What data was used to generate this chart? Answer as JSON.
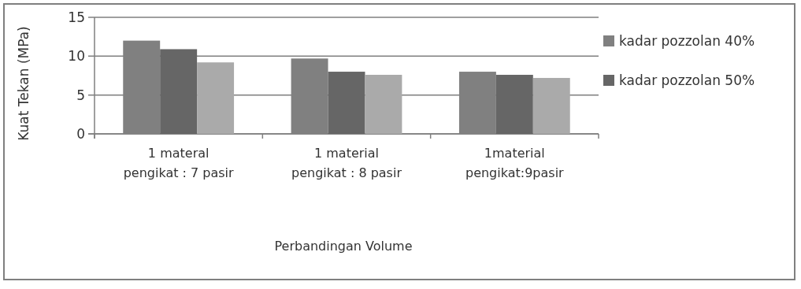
{
  "chart_data": {
    "type": "bar",
    "xlabel": "Perbandingan Volume",
    "ylabel": "Kuat Tekan (MPa)",
    "categories": [
      "1 materal pengikat : 7 pasir",
      "1 material pengikat : 8 pasir",
      "1material pengikat:9pasir"
    ],
    "series": [
      {
        "name": "kadar pozzolan 40%",
        "color": "#808080",
        "values": [
          12.0,
          9.7,
          8.0
        ]
      },
      {
        "name": "kadar pozzolan 50%",
        "color": "#666666",
        "values": [
          10.9,
          8.0,
          7.6
        ]
      },
      {
        "color": "#aaaaaa",
        "values": [
          9.2,
          7.6,
          7.2
        ]
      }
    ],
    "ylim": [
      0,
      15
    ],
    "yticks": [
      0,
      5,
      10,
      15
    ],
    "grid": "y",
    "legend": "right"
  }
}
